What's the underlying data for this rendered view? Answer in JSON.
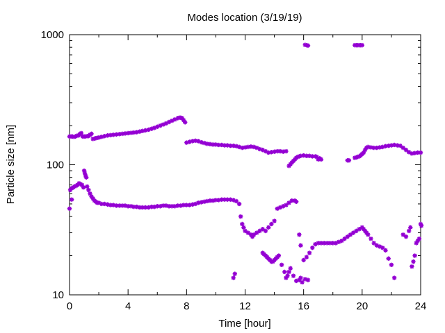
{
  "chart_data": {
    "type": "scatter",
    "title": "Modes location (3/19/19)",
    "xlabel": "Time [hour]",
    "ylabel": "Particle size [nm]",
    "xlim": [
      0,
      24
    ],
    "ylim": [
      10,
      1000
    ],
    "yscale": "log",
    "xticks": [
      0,
      4,
      8,
      12,
      16,
      20,
      24
    ],
    "yticks": [
      10,
      100,
      1000
    ],
    "marker_color": "#9400d3",
    "marker": "asterisk",
    "grid": false,
    "legend": "none",
    "series": [
      {
        "points": [
          [
            0.0,
            165
          ],
          [
            0.1,
            165
          ],
          [
            0.2,
            165
          ],
          [
            0.3,
            164
          ],
          [
            0.4,
            165
          ],
          [
            0.5,
            167
          ],
          [
            0.6,
            168
          ],
          [
            0.7,
            172
          ],
          [
            0.8,
            175
          ],
          [
            0.9,
            165
          ],
          [
            1.0,
            165
          ],
          [
            1.1,
            165
          ],
          [
            1.2,
            166
          ],
          [
            1.3,
            166
          ],
          [
            1.4,
            170
          ],
          [
            1.5,
            173
          ],
          [
            1.6,
            158
          ],
          [
            1.7,
            159
          ],
          [
            1.8,
            160
          ],
          [
            1.9,
            161
          ],
          [
            2.0,
            162
          ],
          [
            2.2,
            164
          ],
          [
            2.4,
            166
          ],
          [
            2.6,
            168
          ],
          [
            2.8,
            169
          ],
          [
            3.0,
            170
          ],
          [
            3.2,
            171
          ],
          [
            3.4,
            172
          ],
          [
            3.6,
            173
          ],
          [
            3.8,
            174
          ],
          [
            4.0,
            175
          ],
          [
            4.2,
            176
          ],
          [
            4.4,
            177
          ],
          [
            4.6,
            178
          ],
          [
            4.8,
            180
          ],
          [
            5.0,
            182
          ],
          [
            5.2,
            184
          ],
          [
            5.4,
            186
          ],
          [
            5.6,
            189
          ],
          [
            5.8,
            192
          ],
          [
            6.0,
            196
          ],
          [
            6.2,
            200
          ],
          [
            6.4,
            204
          ],
          [
            6.6,
            208
          ],
          [
            6.8,
            213
          ],
          [
            7.0,
            218
          ],
          [
            7.2,
            223
          ],
          [
            7.4,
            228
          ],
          [
            7.5,
            230
          ],
          [
            7.6,
            230
          ],
          [
            7.7,
            228
          ],
          [
            7.8,
            220
          ],
          [
            7.9,
            212
          ],
          [
            8.0,
            148
          ],
          [
            8.2,
            150
          ],
          [
            8.4,
            152
          ],
          [
            8.6,
            153
          ],
          [
            8.8,
            152
          ],
          [
            9.0,
            149
          ],
          [
            9.2,
            147
          ],
          [
            9.4,
            145
          ],
          [
            9.6,
            144
          ],
          [
            9.8,
            143
          ],
          [
            10.0,
            143
          ],
          [
            10.2,
            142
          ],
          [
            10.4,
            142
          ],
          [
            10.6,
            141
          ],
          [
            10.8,
            141
          ],
          [
            11.0,
            140
          ],
          [
            11.2,
            140
          ],
          [
            11.4,
            139
          ],
          [
            11.6,
            137
          ],
          [
            11.8,
            135
          ],
          [
            12.0,
            136
          ],
          [
            12.2,
            137
          ],
          [
            12.4,
            138
          ],
          [
            12.6,
            137
          ],
          [
            12.8,
            135
          ],
          [
            13.0,
            132
          ],
          [
            13.2,
            130
          ],
          [
            13.4,
            127
          ],
          [
            13.6,
            124
          ],
          [
            13.8,
            125
          ],
          [
            14.0,
            126
          ],
          [
            14.2,
            127
          ],
          [
            14.4,
            127
          ],
          [
            14.6,
            126
          ],
          [
            14.8,
            127
          ],
          [
            15.0,
            98
          ],
          [
            15.1,
            101
          ],
          [
            15.2,
            104
          ],
          [
            15.3,
            107
          ],
          [
            15.4,
            110
          ],
          [
            15.5,
            113
          ],
          [
            15.6,
            115
          ],
          [
            15.7,
            116
          ],
          [
            15.8,
            117
          ],
          [
            16.0,
            118
          ],
          [
            16.2,
            117
          ],
          [
            16.4,
            117
          ],
          [
            16.6,
            116
          ],
          [
            16.8,
            116
          ],
          [
            16.9,
            115
          ],
          [
            17.0,
            110
          ],
          [
            17.1,
            112
          ],
          [
            17.2,
            110
          ],
          [
            19.0,
            108
          ],
          [
            19.1,
            108
          ],
          [
            19.5,
            113
          ],
          [
            19.6,
            114
          ],
          [
            19.7,
            115
          ],
          [
            19.8,
            116
          ],
          [
            19.9,
            118
          ],
          [
            20.0,
            121
          ],
          [
            20.1,
            124
          ],
          [
            20.2,
            130
          ],
          [
            20.3,
            135
          ],
          [
            20.4,
            137
          ],
          [
            20.6,
            136
          ],
          [
            20.8,
            135
          ],
          [
            21.0,
            135
          ],
          [
            21.2,
            136
          ],
          [
            21.4,
            137
          ],
          [
            21.6,
            139
          ],
          [
            21.8,
            140
          ],
          [
            22.0,
            141
          ],
          [
            22.2,
            142
          ],
          [
            22.4,
            141
          ],
          [
            22.6,
            140
          ],
          [
            22.8,
            135
          ],
          [
            23.0,
            130
          ],
          [
            23.2,
            125
          ],
          [
            23.4,
            122
          ],
          [
            23.6,
            123
          ],
          [
            23.8,
            124
          ],
          [
            24.0,
            124
          ]
        ]
      },
      {
        "points": [
          [
            0.0,
            46
          ],
          [
            0.05,
            64
          ],
          [
            0.15,
            66
          ],
          [
            0.25,
            67
          ],
          [
            0.35,
            68
          ],
          [
            0.45,
            69
          ],
          [
            0.55,
            70
          ],
          [
            0.65,
            72
          ],
          [
            0.75,
            71
          ],
          [
            0.85,
            70
          ],
          [
            0.95,
            67
          ],
          [
            1.0,
            90
          ],
          [
            1.05,
            86
          ],
          [
            1.1,
            82
          ],
          [
            1.15,
            80
          ],
          [
            1.2,
            68
          ],
          [
            1.3,
            64
          ],
          [
            1.4,
            60
          ],
          [
            1.5,
            57
          ],
          [
            1.6,
            55
          ],
          [
            1.7,
            53
          ],
          [
            1.8,
            52
          ],
          [
            1.9,
            51
          ],
          [
            2.0,
            51
          ],
          [
            0.15,
            54
          ],
          [
            2.2,
            50
          ],
          [
            2.4,
            50
          ],
          [
            2.6,
            49.5
          ],
          [
            2.8,
            49
          ],
          [
            3.0,
            49
          ],
          [
            3.2,
            48.5
          ],
          [
            3.4,
            48.5
          ],
          [
            3.6,
            48.5
          ],
          [
            3.8,
            48.5
          ],
          [
            4.0,
            48
          ],
          [
            4.2,
            48
          ],
          [
            4.4,
            47.5
          ],
          [
            4.6,
            47.5
          ],
          [
            4.8,
            47
          ],
          [
            5.0,
            47
          ],
          [
            5.2,
            47
          ],
          [
            5.4,
            47
          ],
          [
            5.6,
            47.5
          ],
          [
            5.8,
            47.5
          ],
          [
            6.0,
            48
          ],
          [
            6.2,
            48
          ],
          [
            6.4,
            48.5
          ],
          [
            6.6,
            48.5
          ],
          [
            6.8,
            48
          ],
          [
            7.0,
            48
          ],
          [
            7.2,
            48
          ],
          [
            7.4,
            48.5
          ],
          [
            7.6,
            48.5
          ],
          [
            7.8,
            49
          ],
          [
            8.0,
            49
          ],
          [
            8.2,
            49
          ],
          [
            8.4,
            49.5
          ],
          [
            8.6,
            50
          ],
          [
            8.8,
            51
          ],
          [
            9.0,
            51.5
          ],
          [
            9.2,
            52
          ],
          [
            9.4,
            52.5
          ],
          [
            9.6,
            53
          ],
          [
            9.8,
            53
          ],
          [
            10.0,
            53.5
          ],
          [
            10.2,
            53.5
          ],
          [
            10.4,
            54
          ],
          [
            10.6,
            54
          ],
          [
            10.8,
            54
          ],
          [
            11.0,
            54
          ],
          [
            11.2,
            53.5
          ],
          [
            11.4,
            52.5
          ],
          [
            11.6,
            50
          ],
          [
            11.7,
            40
          ],
          [
            11.8,
            35
          ],
          [
            11.9,
            33
          ],
          [
            12.0,
            31
          ],
          [
            12.2,
            30
          ],
          [
            12.4,
            29
          ],
          [
            12.5,
            28
          ],
          [
            12.6,
            29
          ],
          [
            12.8,
            30
          ],
          [
            13.0,
            31
          ],
          [
            13.2,
            32
          ],
          [
            13.4,
            31
          ],
          [
            13.6,
            33
          ],
          [
            13.8,
            35
          ],
          [
            14.0,
            37
          ],
          [
            14.2,
            46
          ],
          [
            14.4,
            47
          ],
          [
            14.6,
            48
          ],
          [
            14.8,
            49
          ],
          [
            15.0,
            51
          ],
          [
            15.2,
            53
          ],
          [
            15.4,
            53
          ],
          [
            15.5,
            52
          ],
          [
            13.2,
            21
          ],
          [
            13.3,
            20.5
          ],
          [
            13.4,
            20
          ],
          [
            13.5,
            19.5
          ],
          [
            13.6,
            19
          ],
          [
            13.7,
            18.5
          ],
          [
            13.8,
            18
          ],
          [
            13.9,
            18
          ],
          [
            14.0,
            18.5
          ],
          [
            14.1,
            19
          ],
          [
            14.2,
            19.5
          ],
          [
            14.3,
            20
          ],
          [
            14.5,
            17
          ],
          [
            14.7,
            15
          ],
          [
            14.8,
            13.5
          ],
          [
            14.9,
            14
          ],
          [
            15.0,
            15
          ],
          [
            15.1,
            16
          ],
          [
            15.3,
            14
          ],
          [
            15.5,
            12.8
          ],
          [
            15.7,
            13
          ],
          [
            15.8,
            13.5
          ],
          [
            15.9,
            12.5
          ],
          [
            16.1,
            13.2
          ],
          [
            16.3,
            13
          ],
          [
            11.2,
            13.5
          ],
          [
            11.3,
            14.5
          ],
          [
            15.7,
            29
          ],
          [
            15.8,
            24
          ],
          [
            16.0,
            18.5
          ],
          [
            16.2,
            19.5
          ],
          [
            16.4,
            21
          ],
          [
            16.6,
            23
          ],
          [
            16.8,
            24.5
          ],
          [
            17.0,
            25
          ],
          [
            17.2,
            25
          ],
          [
            17.4,
            25
          ],
          [
            17.6,
            25
          ],
          [
            17.8,
            25
          ],
          [
            18.0,
            25
          ],
          [
            18.2,
            25
          ],
          [
            18.4,
            25.5
          ],
          [
            18.6,
            26
          ],
          [
            18.8,
            27
          ],
          [
            19.0,
            28
          ],
          [
            19.2,
            29
          ],
          [
            19.4,
            30
          ],
          [
            19.6,
            31
          ],
          [
            19.8,
            32
          ],
          [
            20.0,
            33
          ],
          [
            20.1,
            32
          ],
          [
            20.2,
            31
          ],
          [
            20.3,
            30
          ],
          [
            20.4,
            29
          ],
          [
            20.6,
            27
          ],
          [
            20.8,
            25
          ],
          [
            21.0,
            24
          ],
          [
            21.2,
            23.5
          ],
          [
            21.4,
            23
          ],
          [
            21.6,
            22
          ],
          [
            21.8,
            19
          ],
          [
            22.0,
            17
          ],
          [
            22.2,
            13.5
          ],
          [
            22.8,
            29
          ],
          [
            23.0,
            28
          ],
          [
            23.2,
            31
          ],
          [
            23.3,
            33
          ],
          [
            23.4,
            16.5
          ],
          [
            23.5,
            18
          ],
          [
            23.6,
            20
          ],
          [
            23.7,
            25
          ],
          [
            23.8,
            26
          ],
          [
            23.9,
            27
          ],
          [
            24.0,
            35
          ],
          [
            24.05,
            34
          ]
        ]
      },
      {
        "points": [
          [
            16.1,
            835
          ],
          [
            16.2,
            830
          ],
          [
            16.3,
            825
          ],
          [
            19.5,
            830
          ],
          [
            19.6,
            830
          ],
          [
            19.7,
            830
          ],
          [
            19.8,
            830
          ],
          [
            19.9,
            830
          ],
          [
            20.0,
            830
          ]
        ]
      }
    ]
  }
}
